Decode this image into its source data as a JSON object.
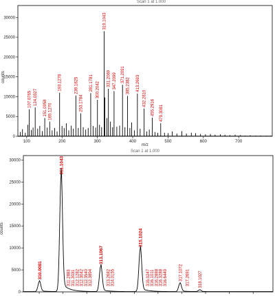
{
  "chart_data": [
    {
      "type": "line",
      "title": "Scan 1 at 1.000",
      "xlabel": "m/z",
      "ylabel": "counts",
      "xlim": [
        75,
        795
      ],
      "ylim": [
        0,
        33000
      ],
      "x_ticks": [
        "100",
        "200",
        "300",
        "400",
        "500",
        "600",
        "700"
      ],
      "y_ticks": [
        "0",
        "5000",
        "10000",
        "15000",
        "20000",
        "25000",
        "30000"
      ],
      "series": [
        {
          "values": [
            [
              82,
              1100
            ],
            [
              88,
              1800
            ],
            [
              96,
              900
            ],
            [
              103,
              2900
            ],
            [
              107.0765,
              6800
            ],
            [
              113,
              1600
            ],
            [
              118,
              2200
            ],
            [
              124.0327,
              7300
            ],
            [
              131,
              1900
            ],
            [
              137,
              2600
            ],
            [
              144,
              1300
            ],
            [
              151.0958,
              4600
            ],
            [
              158,
              2200
            ],
            [
              165.127,
              3700
            ],
            [
              172,
              1500
            ],
            [
              179,
              2100
            ],
            [
              186,
              1200
            ],
            [
              193.1278,
              11000
            ],
            [
              200,
              2600
            ],
            [
              206,
              2100
            ],
            [
              212,
              3300
            ],
            [
              219,
              1500
            ],
            [
              226,
              2700
            ],
            [
              232,
              1900
            ],
            [
              239.1625,
              10300
            ],
            [
              246,
              2100
            ],
            [
              253.1784,
              5800
            ],
            [
              260,
              2300
            ],
            [
              267,
              1700
            ],
            [
              274,
              2100
            ],
            [
              281.1781,
              10900
            ],
            [
              288,
              2600
            ],
            [
              295,
              2200
            ],
            [
              300.2042,
              9200
            ],
            [
              306,
              2900
            ],
            [
              312,
              2300
            ],
            [
              319.1043,
              26500
            ],
            [
              321.1024,
              9800
            ],
            [
              327,
              4600
            ],
            [
              331.2069,
              12000
            ],
            [
              337,
              3700
            ],
            [
              343,
              2300
            ],
            [
              347.2099,
              11400
            ],
            [
              355,
              2400
            ],
            [
              363,
              2700
            ],
            [
              371.2091,
              13000
            ],
            [
              378,
              2300
            ],
            [
              385.2382,
              10200
            ],
            [
              392,
              2100
            ],
            [
              397,
              3500
            ],
            [
              405,
              1500
            ],
            [
              413.2693,
              10800
            ],
            [
              421,
              1900
            ],
            [
              432.281,
              7000
            ],
            [
              440,
              1200
            ],
            [
              447,
              1700
            ],
            [
              455.2916,
              4700
            ],
            [
              463,
              1100
            ],
            [
              471,
              900
            ],
            [
              479.3081,
              3300
            ],
            [
              490,
              900
            ],
            [
              500,
              800
            ],
            [
              512,
              1200
            ],
            [
              525,
              700
            ],
            [
              539,
              1300
            ],
            [
              552,
              700
            ],
            [
              566,
              900
            ],
            [
              578,
              800
            ],
            [
              592,
              600
            ],
            [
              606,
              500
            ],
            [
              620,
              600
            ],
            [
              633,
              400
            ],
            [
              648,
              500
            ],
            [
              661,
              400
            ],
            [
              675,
              300
            ],
            [
              690,
              400
            ],
            [
              705,
              300
            ],
            [
              718,
              200
            ],
            [
              733,
              250
            ],
            [
              748,
              200
            ],
            [
              762,
              200
            ],
            [
              778,
              150
            ],
            [
              790,
              150
            ]
          ]
        }
      ],
      "peak_labels": [
        "107.0765",
        "124.0327",
        "151.0958",
        "165.1270",
        "193.1278",
        "239.1625",
        "253.1784",
        "281.1781",
        "300.2042",
        "319.1043",
        "331.2069",
        "347.2099",
        "371.2091",
        "385.2382",
        "413.2693",
        "432.2810",
        "455.2916",
        "479.3081"
      ]
    },
    {
      "type": "line",
      "title": "Scan 1 at 1.000",
      "xlabel": "",
      "ylabel": "counts",
      "xlim": [
        309.2,
        321.8
      ],
      "ylim": [
        0,
        31000
      ],
      "x_ticks": [],
      "y_ticks": [
        "0",
        "5000",
        "10000",
        "15000",
        "20000",
        "25000",
        "30000"
      ],
      "series": [
        {
          "values": [
            [
              310.0081,
              2300
            ],
            [
              311.1043,
              26200
            ],
            [
              313.1067,
              5800
            ],
            [
              315.1024,
              9700
            ],
            [
              317.1072,
              1900
            ],
            [
              318.1027,
              400
            ]
          ]
        }
      ],
      "peak_labels": [
        {
          "text": "310.0081",
          "bold": true
        },
        {
          "text": "311.1043",
          "bold": true
        },
        {
          "text": "311.2883",
          "bold": false
        },
        {
          "text": "311.3031",
          "bold": false
        },
        {
          "text": "312.1282",
          "bold": false
        },
        {
          "text": "312.3042",
          "bold": false
        },
        {
          "text": "312.3540",
          "bold": false
        },
        {
          "text": "312.3894",
          "bold": false
        },
        {
          "text": "313.1067",
          "bold": true
        },
        {
          "text": "313.2682",
          "bold": false
        },
        {
          "text": "314.0155",
          "bold": false
        },
        {
          "text": "315.1024",
          "bold": true
        },
        {
          "text": "316.0247",
          "bold": false
        },
        {
          "text": "316.1011",
          "bold": false
        },
        {
          "text": "316.2888",
          "bold": false
        },
        {
          "text": "316.3288",
          "bold": false
        },
        {
          "text": "316.6449",
          "bold": false
        },
        {
          "text": "317.1072",
          "bold": false
        },
        {
          "text": "317.2691",
          "bold": false
        },
        {
          "text": "318.1027",
          "bold": false
        }
      ]
    }
  ]
}
